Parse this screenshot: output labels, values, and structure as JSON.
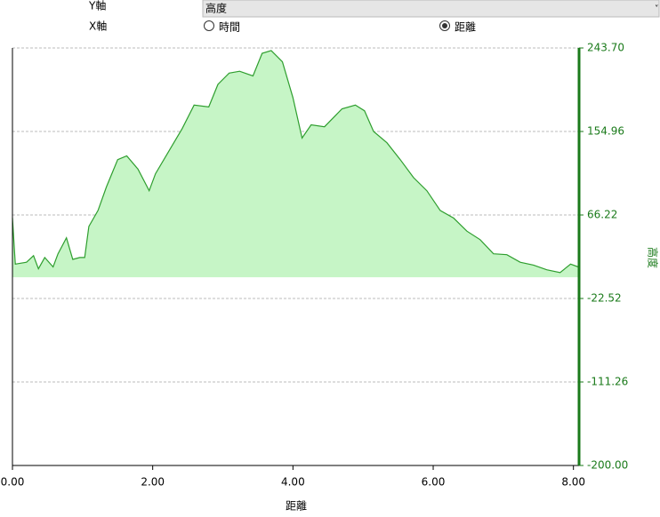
{
  "controls": {
    "y_axis_label": "Y軸",
    "y_axis_select": "高度",
    "x_axis_label": "X軸",
    "x_options": [
      "時間",
      "距離"
    ],
    "x_selected": 1
  },
  "chart_data": {
    "type": "area",
    "x_label": "距離",
    "y_label": "高度",
    "y_axis_side": "right",
    "color": "#2e9e2e",
    "fill": "#c6f5c6",
    "axis_color": "#1a7a1a",
    "grid": true,
    "xlim": [
      0,
      8.08
    ],
    "xticks": [
      {
        "value": 0,
        "label": "0.00"
      },
      {
        "value": 2,
        "label": "2.00"
      },
      {
        "value": 4,
        "label": "4.00"
      },
      {
        "value": 6,
        "label": "6.00"
      },
      {
        "value": 8,
        "label": "8.00"
      }
    ],
    "ylim": [
      -200,
      243.7
    ],
    "yticks": [
      {
        "value": -200,
        "label": "-200.00"
      },
      -111.26,
      -22.52,
      66.22,
      154.96,
      {
        "value": 243.7,
        "label": "243.70"
      }
    ],
    "x": [
      0,
      0.04,
      0.2,
      0.3,
      0.37,
      0.46,
      0.58,
      0.65,
      0.77,
      0.86,
      0.96,
      1.03,
      1.09,
      1.22,
      1.34,
      1.5,
      1.63,
      1.79,
      1.95,
      2.04,
      2.23,
      2.42,
      2.59,
      2.8,
      2.93,
      3.09,
      3.24,
      3.43,
      3.56,
      3.69,
      3.85,
      4.0,
      4.13,
      4.26,
      4.45,
      4.7,
      4.89,
      5.02,
      5.15,
      5.34,
      5.53,
      5.72,
      5.91,
      6.1,
      6.29,
      6.48,
      6.67,
      6.86,
      7.05,
      7.24,
      7.43,
      7.62,
      7.81,
      7.96,
      8.07
    ],
    "values": [
      63,
      14,
      16,
      23,
      9,
      21,
      11,
      25,
      42,
      19,
      21,
      21,
      54,
      71,
      96,
      125,
      129,
      115,
      92,
      110,
      134,
      158,
      183,
      181,
      205,
      217,
      219,
      214,
      238,
      241,
      229,
      191,
      148,
      162,
      160,
      179,
      183,
      177,
      155,
      143,
      125,
      106,
      92,
      71,
      63,
      49,
      40,
      25,
      24,
      16,
      13,
      8,
      5,
      14,
      11
    ]
  }
}
